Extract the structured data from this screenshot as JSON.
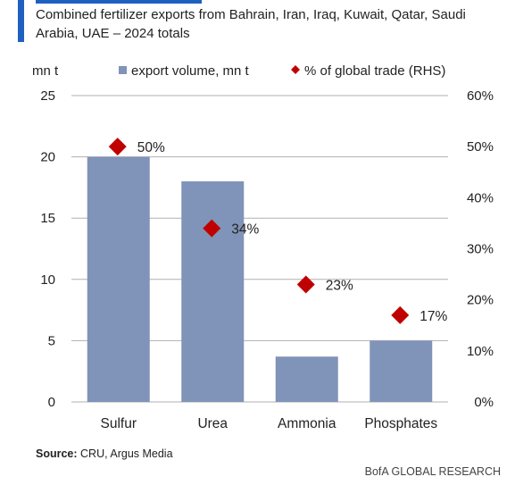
{
  "subtitle": "Combined fertilizer exports from Bahrain, Iran, Iraq, Kuwait, Qatar, Saudi Arabia, UAE – 2024 totals",
  "source_label": "Source:",
  "source_text": "CRU, Argus Media",
  "brand": "BofA GLOBAL RESEARCH",
  "colors": {
    "bar": "#8093b8",
    "marker": "#c00000",
    "grid": "#b0b0b0",
    "accent": "#1f5fbf"
  },
  "chart_data": {
    "type": "bar",
    "categories": [
      "Sulfur",
      "Urea",
      "Ammonia",
      "Phosphates"
    ],
    "series": [
      {
        "name": "export volume, mn t",
        "axis": "left",
        "type": "bar",
        "values": [
          20.0,
          18.0,
          3.7,
          5.0
        ]
      },
      {
        "name": "% of global trade (RHS)",
        "axis": "right",
        "type": "scatter",
        "marker": "diamond",
        "values": [
          50,
          34,
          23,
          17
        ],
        "labels": [
          "50%",
          "34%",
          "23%",
          "17%"
        ]
      }
    ],
    "ylabel": "mn t",
    "ylim": [
      0,
      25
    ],
    "y_ticks": [
      "0",
      "5",
      "10",
      "15",
      "20",
      "25"
    ],
    "y2lim": [
      0,
      60
    ],
    "y2_ticks": [
      "0%",
      "10%",
      "20%",
      "30%",
      "40%",
      "50%",
      "60%"
    ],
    "grid": true,
    "legend": "top"
  }
}
